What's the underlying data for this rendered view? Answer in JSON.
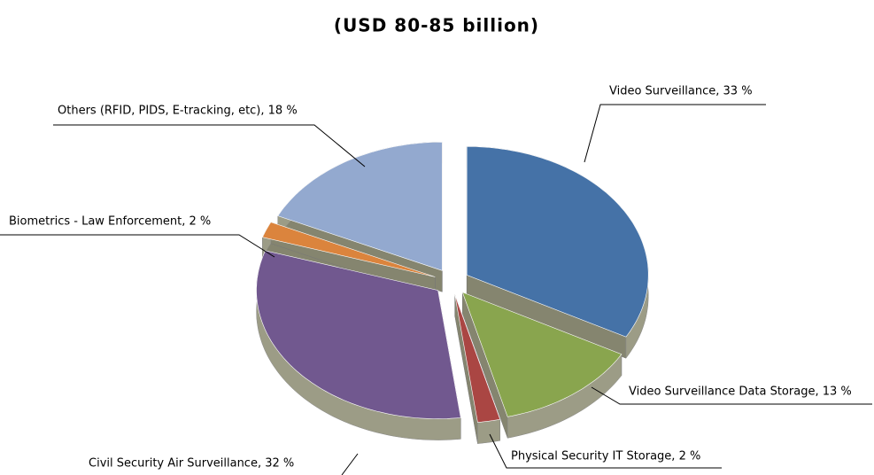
{
  "chart_data": {
    "type": "pie",
    "title": "(USD 80-85 billion)",
    "values": [
      33,
      13,
      2,
      32,
      2,
      18
    ],
    "value_labels": [
      "Video Surveillance, 33 %",
      "Video Surveillance Data Storage, 13 %",
      "Physical Security IT Storage, 2 %",
      "Civil Security Air Surveillance, 32 %",
      "Biometrics - Law Enforcement, 2 %",
      "Others (RFID, PIDS, E-tracking, etc), 18 %"
    ],
    "colors": [
      "#4572a7",
      "#89a54e",
      "#aa4643",
      "#71588f",
      "#db843d",
      "#93a9cf"
    ]
  }
}
